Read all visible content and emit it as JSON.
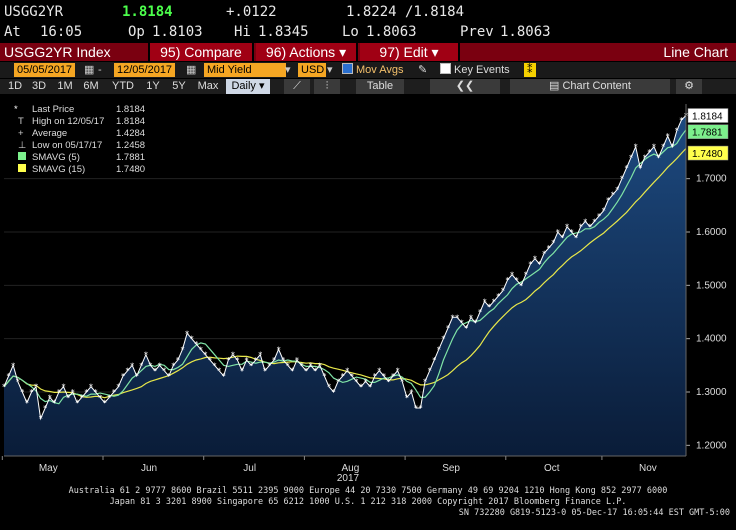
{
  "header": {
    "ticker": "USGG2YR",
    "last": "1.8184",
    "change": "+.0122",
    "bid_ask": "1.8224 /1.8184",
    "time_label": "At",
    "time": "16:05",
    "open_label": "Op",
    "open": "1.8103",
    "high_label": "Hi",
    "high": "1.8345",
    "low_label": "Lo",
    "low": "1.8063",
    "prev_label": "Prev",
    "prev": "1.8063"
  },
  "toolbar": {
    "title": "USGG2YR Index",
    "compare": "95) Compare",
    "actions": "96) Actions",
    "edit": "97) Edit",
    "chart_type": "Line Chart"
  },
  "controls": {
    "start_date": "05/05/2017",
    "end_date": "12/05/2017",
    "field": "Mid Yield",
    "currency": "USD",
    "mov_avgs": "Mov Avgs",
    "key_events": "Key Events"
  },
  "periods": {
    "items": [
      "1D",
      "3D",
      "1M",
      "6M",
      "YTD",
      "1Y",
      "5Y",
      "Max"
    ],
    "frequency": "Daily",
    "table": "Table",
    "chart_content": "Chart Content"
  },
  "legend": {
    "last_price": "Last Price",
    "last_price_val": "1.8184",
    "high": "High on 12/05/17",
    "high_val": "1.8184",
    "average": "Average",
    "average_val": "1.4284",
    "low": "Low on 05/17/17",
    "low_val": "1.2458",
    "sma5": "SMAVG (5)",
    "sma5_val": "1.7881",
    "sma15": "SMAVG (15)",
    "sma15_val": "1.7480"
  },
  "colors": {
    "price": "#ffffff",
    "sma5": "#7fe3a6",
    "sma15": "#e8e84a",
    "area_top": "#1a3f6e",
    "area_bottom": "#0a1f3e",
    "last_tag": "#ffffff",
    "sma5_tag": "#7cf08c",
    "sma15_tag": "#ffff4c"
  },
  "chart_data": {
    "type": "line",
    "year_label": "2017",
    "months": [
      "May",
      "Jun",
      "Jul",
      "Aug",
      "Sep",
      "Oct",
      "Nov"
    ],
    "ylim": [
      1.18,
      1.84
    ],
    "yticks": [
      "1.2000",
      "1.3000",
      "1.4000",
      "1.5000",
      "1.6000",
      "1.7000"
    ],
    "series": [
      {
        "name": "Last Price",
        "last": "1.8184",
        "values": [
          1.31,
          1.33,
          1.35,
          1.32,
          1.3,
          1.28,
          1.3,
          1.31,
          1.25,
          1.27,
          1.29,
          1.28,
          1.3,
          1.31,
          1.29,
          1.3,
          1.28,
          1.29,
          1.3,
          1.31,
          1.3,
          1.29,
          1.28,
          1.29,
          1.3,
          1.31,
          1.33,
          1.34,
          1.35,
          1.33,
          1.35,
          1.37,
          1.35,
          1.34,
          1.35,
          1.34,
          1.33,
          1.35,
          1.36,
          1.38,
          1.41,
          1.4,
          1.39,
          1.38,
          1.37,
          1.36,
          1.35,
          1.34,
          1.33,
          1.36,
          1.37,
          1.36,
          1.34,
          1.36,
          1.35,
          1.36,
          1.37,
          1.34,
          1.35,
          1.36,
          1.38,
          1.36,
          1.35,
          1.34,
          1.36,
          1.35,
          1.34,
          1.35,
          1.34,
          1.35,
          1.33,
          1.31,
          1.3,
          1.32,
          1.33,
          1.34,
          1.33,
          1.32,
          1.31,
          1.32,
          1.31,
          1.33,
          1.34,
          1.33,
          1.32,
          1.33,
          1.34,
          1.32,
          1.29,
          1.3,
          1.27,
          1.27,
          1.32,
          1.34,
          1.36,
          1.38,
          1.4,
          1.42,
          1.44,
          1.44,
          1.43,
          1.42,
          1.44,
          1.43,
          1.45,
          1.47,
          1.46,
          1.47,
          1.48,
          1.49,
          1.51,
          1.52,
          1.51,
          1.5,
          1.52,
          1.54,
          1.55,
          1.54,
          1.56,
          1.57,
          1.58,
          1.6,
          1.59,
          1.61,
          1.6,
          1.59,
          1.61,
          1.62,
          1.61,
          1.62,
          1.63,
          1.64,
          1.66,
          1.67,
          1.68,
          1.7,
          1.72,
          1.74,
          1.76,
          1.72,
          1.74,
          1.75,
          1.76,
          1.74,
          1.76,
          1.78,
          1.76,
          1.79,
          1.81,
          1.8184
        ]
      },
      {
        "name": "SMAVG (5)",
        "last": "1.7881",
        "kind": "sma",
        "window": 5
      },
      {
        "name": "SMAVG (15)",
        "last": "1.7480",
        "kind": "sma",
        "window": 15
      }
    ]
  },
  "footer": {
    "line1": "Australia 61 2 9777 8600 Brazil 5511 2395 9000 Europe 44 20 7330 7500 Germany 49 69 9204 1210 Hong Kong 852 2977 6000",
    "line2": "Japan 81 3 3201 8900      Singapore 65 6212 1000      U.S. 1 212 318 2000            Copyright 2017 Bloomberg Finance L.P.",
    "line3": "SN 732280 G819-5123-0 05-Dec-17 16:05:44 EST  GMT-5:00"
  }
}
